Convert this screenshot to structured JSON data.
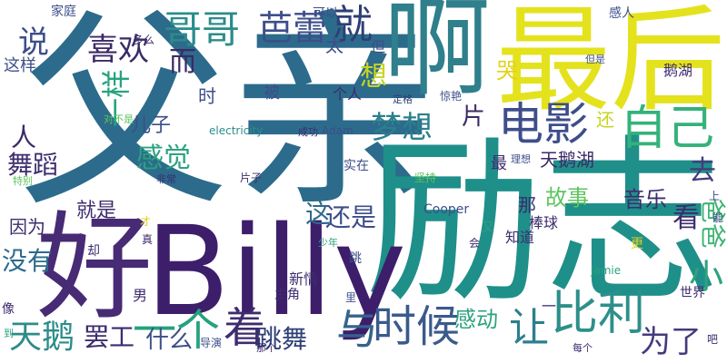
{
  "cloud": {
    "background": "#ffffff",
    "words": [
      {
        "id": "fuqin",
        "text": "父亲",
        "color": "#2c6b8c"
      },
      {
        "id": "lizhi",
        "text": "励志",
        "color": "#1f8f8a"
      },
      {
        "id": "billy",
        "text": "Billy",
        "color": "#3d1e6b"
      },
      {
        "id": "zuihou",
        "text": "最后",
        "color": "#e4e21d"
      },
      {
        "id": "a",
        "text": "啊",
        "color": "#2f7f8c"
      },
      {
        "id": "hao",
        "text": "好",
        "color": "#472b74"
      },
      {
        "id": "ziji",
        "text": "自己",
        "color": "#34b27a"
      },
      {
        "id": "dianying",
        "text": "电影",
        "color": "#3d4e8a"
      },
      {
        "id": "bili",
        "text": "比利",
        "color": "#2e8f8a"
      },
      {
        "id": "shihou",
        "text": "时候",
        "color": "#3a5a8c"
      },
      {
        "id": "gege",
        "text": "哥哥",
        "color": "#2c8c8a"
      },
      {
        "id": "balei",
        "text": "芭蕾",
        "color": "#3d4e8a"
      },
      {
        "id": "jiu1",
        "text": "就",
        "color": "#2e3f75"
      },
      {
        "id": "xihuan",
        "text": "喜欢",
        "color": "#3b2a66"
      },
      {
        "id": "yige",
        "text": "一个",
        "color": "#24a27e"
      },
      {
        "id": "zhe",
        "text": "着",
        "color": "#3d2c6e"
      },
      {
        "id": "yu",
        "text": "与",
        "color": "#34648c"
      },
      {
        "id": "rang",
        "text": "让",
        "color": "#2c7f8c"
      },
      {
        "id": "tiane",
        "text": "天鹅",
        "color": "#2c8c8a"
      },
      {
        "id": "weile",
        "text": "为了",
        "color": "#453a7e"
      },
      {
        "id": "mengxiang",
        "text": "梦想",
        "color": "#2c7f8c"
      },
      {
        "id": "ganjue",
        "text": "感觉",
        "color": "#2ca27e"
      },
      {
        "id": "yiyang",
        "text": "一样",
        "color": "#26a37d"
      },
      {
        "id": "shuo",
        "text": "说",
        "color": "#3d4e8a"
      },
      {
        "id": "xiang",
        "text": "想",
        "color": "#c7d422"
      },
      {
        "id": "er",
        "text": "而",
        "color": "#3b2a66"
      },
      {
        "id": "ku",
        "text": "哭",
        "color": "#e4d21d"
      },
      {
        "id": "xiao",
        "text": "小",
        "color": "#2ea27e"
      },
      {
        "id": "baba",
        "text": "爸爸",
        "color": "#3fb573"
      },
      {
        "id": "kan",
        "text": "看",
        "color": "#3d2c6e"
      },
      {
        "id": "qu",
        "text": "去",
        "color": "#453a7e"
      },
      {
        "id": "zhe2",
        "text": "这",
        "color": "#2c6b8c"
      },
      {
        "id": "haishi",
        "text": "还是",
        "color": "#3d4e8a"
      },
      {
        "id": "gushi",
        "text": "故事",
        "color": "#5ec45f"
      },
      {
        "id": "yinyue",
        "text": "音乐",
        "color": "#3d2c6e"
      },
      {
        "id": "tianehu",
        "text": "天鹅湖",
        "color": "#3b2a66"
      },
      {
        "id": "pian",
        "text": "片",
        "color": "#3b2a66"
      },
      {
        "id": "ren",
        "text": "人",
        "color": "#3b2a66"
      },
      {
        "id": "wudao",
        "text": "舞蹈",
        "color": "#3d2c6e"
      },
      {
        "id": "meiyou",
        "text": "没有",
        "color": "#2c6b8c"
      },
      {
        "id": "tiaowu",
        "text": "跳舞",
        "color": "#2e3f75"
      },
      {
        "id": "bagong",
        "text": "罢工",
        "color": "#3d2c6e"
      },
      {
        "id": "shenme",
        "text": "什么",
        "color": "#3d4e8a"
      },
      {
        "id": "gandong",
        "text": "感动",
        "color": "#2ca27e"
      },
      {
        "id": "jiushi",
        "text": "就是",
        "color": "#3d2c6e"
      },
      {
        "id": "yinwei",
        "text": "因为",
        "color": "#3d2c6e"
      },
      {
        "id": "erzi",
        "text": "儿子",
        "color": "#3d4e8a"
      },
      {
        "id": "shi",
        "text": "时",
        "color": "#3d4e8a"
      },
      {
        "id": "bei",
        "text": "被",
        "color": "#3d4e8a"
      },
      {
        "id": "geren",
        "text": "个人",
        "color": "#3d2c6e"
      },
      {
        "id": "zheyang",
        "text": "这样",
        "color": "#3d4e8a"
      },
      {
        "id": "jiating",
        "text": "家庭",
        "color": "#3d4e8a"
      },
      {
        "id": "duome",
        "text": "多么",
        "color": "#3d2c6e"
      },
      {
        "id": "tai",
        "text": "太",
        "color": "#3d4e8a"
      },
      {
        "id": "dan",
        "text": "但",
        "color": "#3d4e8a"
      },
      {
        "id": "keyi",
        "text": "可以",
        "color": "#3d4e8a"
      },
      {
        "id": "huan",
        "text": "还",
        "color": "#c7d422"
      },
      {
        "id": "ganren",
        "text": "感人",
        "color": "#3d4e8a"
      },
      {
        "id": "ehu",
        "text": "鹅湖",
        "color": "#3d2c6e"
      },
      {
        "id": "dingge",
        "text": "定格",
        "color": "#2e3f75"
      },
      {
        "id": "jingyan",
        "text": "惊艳",
        "color": "#3d4e8a"
      },
      {
        "id": "danshi",
        "text": "但是",
        "color": "#3d4e8a"
      },
      {
        "id": "electricity",
        "text": "electricity",
        "color": "#2c8c8a"
      },
      {
        "id": "chenggong",
        "text": "成功",
        "color": "#3d2c6e"
      },
      {
        "id": "adam",
        "text": "Adam",
        "color": "#3d4e8a"
      },
      {
        "id": "shizai",
        "text": "实在",
        "color": "#3d4e8a"
      },
      {
        "id": "jianchi",
        "text": "坚持",
        "color": "#5ec45f"
      },
      {
        "id": "cooper",
        "text": "Cooper",
        "color": "#3d4e8a"
      },
      {
        "id": "na",
        "text": "那",
        "color": "#3d2c6e"
      },
      {
        "id": "zui",
        "text": "最",
        "color": "#3d2c6e"
      },
      {
        "id": "bangqiu",
        "text": "棒球",
        "color": "#3d2c6e"
      },
      {
        "id": "lixiang",
        "text": "理想",
        "color": "#3d4e8a"
      },
      {
        "id": "shang",
        "text": "上",
        "color": "#3d4e8a"
      },
      {
        "id": "neng",
        "text": "能",
        "color": "#3d4e8a"
      },
      {
        "id": "pianzi",
        "text": "片子",
        "color": "#3d2c6e"
      },
      {
        "id": "tebie",
        "text": "特别",
        "color": "#5ec45f"
      },
      {
        "id": "feichang",
        "text": "非常",
        "color": "#3d2c6e"
      },
      {
        "id": "duibushi",
        "text": "对不是",
        "color": "#5ec45f"
      },
      {
        "id": "nan",
        "text": "男",
        "color": "#3d2c6e"
      },
      {
        "id": "que",
        "text": "却",
        "color": "#3d2c6e"
      },
      {
        "id": "zhen",
        "text": "真",
        "color": "#3d2c6e"
      },
      {
        "id": "cai",
        "text": "才",
        "color": "#e4d21d"
      },
      {
        "id": "zhujiao",
        "text": "主角",
        "color": "#3d2c6e"
      },
      {
        "id": "xinqing",
        "text": "新情",
        "color": "#3d2c6e"
      },
      {
        "id": "shaonian",
        "text": "少年",
        "color": "#2ca27e"
      },
      {
        "id": "tiao",
        "text": "跳",
        "color": "#3d4e8a"
      },
      {
        "id": "li",
        "text": "里",
        "color": "#3d4e8a"
      },
      {
        "id": "you",
        "text": "又",
        "color": "#2ca27e"
      },
      {
        "id": "hui",
        "text": "会",
        "color": "#3d2c6e"
      },
      {
        "id": "zhidao",
        "text": "知道",
        "color": "#3d2c6e"
      },
      {
        "id": "geng",
        "text": "更",
        "color": "#e4d21d"
      },
      {
        "id": "jamie",
        "text": "jamie",
        "color": "#26a37d"
      },
      {
        "id": "shijie",
        "text": "世界",
        "color": "#3d2c6e"
      },
      {
        "id": "xiangxiang",
        "text": "像",
        "color": "#3d2c6e"
      },
      {
        "id": "dao",
        "text": "到",
        "color": "#2ca27e"
      },
      {
        "id": "daoyan",
        "text": "导演",
        "color": "#3d4e8a"
      },
      {
        "id": "nage",
        "text": "那个",
        "color": "#3d2c6e"
      },
      {
        "id": "yi",
        "text": "一",
        "color": "#3d2c6e"
      },
      {
        "id": "meige",
        "text": "每个",
        "color": "#3d2c6e"
      },
      {
        "id": "ba",
        "text": "吧",
        "color": "#3d2c6e"
      }
    ]
  }
}
